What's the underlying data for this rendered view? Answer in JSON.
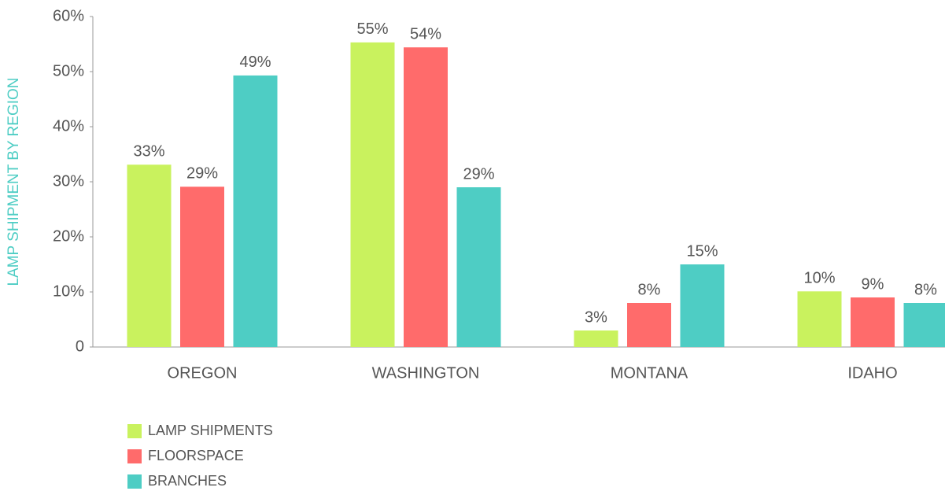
{
  "chart_data": {
    "type": "bar",
    "y_label": "LAMP SHIPMENT BY REGION",
    "categories": [
      "OREGON",
      "WASHINGTON",
      "MONTANA",
      "IDAHO"
    ],
    "series": [
      {
        "name": "LAMP SHIPMENTS",
        "color": "#c9f25e",
        "values": [
          33.1,
          55.3,
          3,
          10.1
        ],
        "value_labels": [
          "33%",
          "55%",
          "3%",
          "10%"
        ]
      },
      {
        "name": "FLOORSPACE",
        "color": "#ff6b6b",
        "values": [
          29.1,
          54.4,
          8,
          9
        ],
        "value_labels": [
          "29%",
          "54%",
          "8%",
          "9%"
        ]
      },
      {
        "name": "BRANCHES",
        "color": "#4ecdc4",
        "values": [
          49.3,
          29,
          15,
          8
        ],
        "value_labels": [
          "49%",
          "29%",
          "15%",
          "8%"
        ]
      }
    ],
    "ylim": [
      0,
      60
    ],
    "yticks": [
      0,
      {
        "value": 10,
        "label": "10%"
      },
      {
        "value": 20,
        "label": "20%"
      },
      {
        "value": 30,
        "label": "30%"
      },
      {
        "value": 40,
        "label": "40%"
      },
      {
        "value": 50,
        "label": "50%"
      },
      {
        "value": 60,
        "label": "60%"
      }
    ],
    "grid": false,
    "legend": "bottom-left"
  }
}
